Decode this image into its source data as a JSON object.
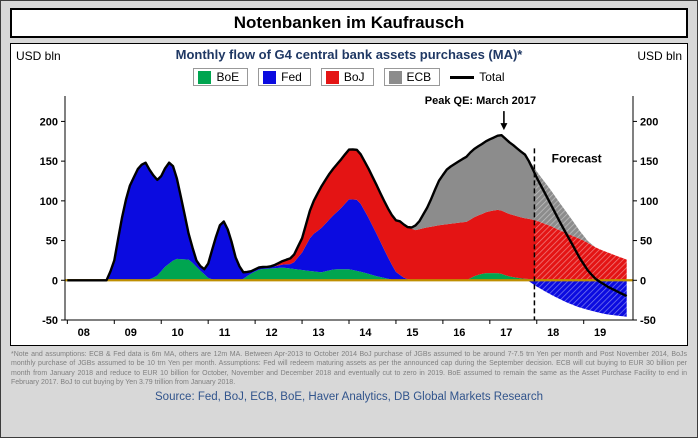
{
  "page": {
    "title": "Notenbanken im Kaufrausch"
  },
  "chart": {
    "unit_left": "USD bln",
    "unit_right": "USD bln",
    "title": "Monthly flow of G4 central bank assets purchases (MA)*",
    "footnote": "*Note and assumptions: ECB & Fed data is 6m MA, others are 12m MA. Between Apr-2013 to October 2014 BoJ purchase of JGBs assumed to be around 7-7.5 trn Yen per month and Post November 2014, BoJs monthly purchase of JGBs assumed to be 10 trn Yen per month. Assumptions: Fed will redeem maturing assets as per the announced cap during the September decision. ECB will cut buying to EUR 30 billion per month from January 2018 and reduce to EUR 10 billion for October, November and December 2018 and eventually cut to zero in 2019. BoE assumed to remain the same as the Asset Purchase Facility to end in February 2017. BoJ to cut buying by Yen 3.79 trillion from January 2018.",
    "source": "Source: Fed, BoJ, ECB, BoE, Haver Analytics, DB Global Markets Research"
  },
  "chart_data": {
    "type": "area",
    "stacked": true,
    "title": "Monthly flow of G4 central bank assets purchases (MA)*",
    "ylabel": "USD bln",
    "ylim": [
      -50,
      200
    ],
    "xlim": [
      2008,
      2020
    ],
    "grid": false,
    "legend_position": "top",
    "y_ticks": [
      200,
      150,
      100,
      50,
      0,
      -50
    ],
    "x_ticks": [
      {
        "label": "08",
        "x": 2008
      },
      {
        "label": "09",
        "x": 2009
      },
      {
        "label": "10",
        "x": 2010
      },
      {
        "label": "11",
        "x": 2011
      },
      {
        "label": "12",
        "x": 2012
      },
      {
        "label": "13",
        "x": 2013
      },
      {
        "label": "14",
        "x": 2014
      },
      {
        "label": "15",
        "x": 2015
      },
      {
        "label": "16",
        "x": 2016
      },
      {
        "label": "17",
        "x": 2017
      },
      {
        "label": "18",
        "x": 2018
      },
      {
        "label": "19",
        "x": 2019
      }
    ],
    "zero_axis_color": "#BF8F00",
    "series": [
      {
        "name": "BoE",
        "color": "#00a550",
        "points": [
          [
            2008,
            0
          ],
          [
            2009.7,
            0
          ],
          [
            2009.9,
            5
          ],
          [
            2010.1,
            18
          ],
          [
            2010.3,
            27
          ],
          [
            2010.6,
            26
          ],
          [
            2010.8,
            14
          ],
          [
            2011,
            3
          ],
          [
            2011.15,
            0
          ],
          [
            2011.7,
            0
          ],
          [
            2011.9,
            8
          ],
          [
            2012.1,
            14
          ],
          [
            2012.6,
            16
          ],
          [
            2013,
            13
          ],
          [
            2013.4,
            10
          ],
          [
            2013.7,
            14
          ],
          [
            2014,
            14
          ],
          [
            2014.3,
            10
          ],
          [
            2014.6,
            5
          ],
          [
            2014.9,
            1
          ],
          [
            2015.1,
            0
          ],
          [
            2016.5,
            0
          ],
          [
            2016.7,
            6
          ],
          [
            2016.9,
            9
          ],
          [
            2017.2,
            9
          ],
          [
            2017.4,
            5
          ],
          [
            2017.7,
            2
          ],
          [
            2018,
            1
          ],
          [
            2018.4,
            0
          ],
          [
            2019.92,
            0
          ]
        ]
      },
      {
        "name": "Fed",
        "color": "#0b0be0",
        "points": [
          [
            2008,
            0
          ],
          [
            2008.85,
            0
          ],
          [
            2009,
            25
          ],
          [
            2009.15,
            75
          ],
          [
            2009.3,
            115
          ],
          [
            2009.5,
            140
          ],
          [
            2009.65,
            150
          ],
          [
            2009.8,
            132
          ],
          [
            2009.95,
            117
          ],
          [
            2010.1,
            125
          ],
          [
            2010.2,
            128
          ],
          [
            2010.3,
            110
          ],
          [
            2010.45,
            70
          ],
          [
            2010.6,
            28
          ],
          [
            2010.75,
            8
          ],
          [
            2010.9,
            4
          ],
          [
            2011,
            18
          ],
          [
            2011.15,
            52
          ],
          [
            2011.3,
            78
          ],
          [
            2011.45,
            60
          ],
          [
            2011.6,
            25
          ],
          [
            2011.75,
            8
          ],
          [
            2011.9,
            3
          ],
          [
            2012.4,
            2
          ],
          [
            2012.8,
            6
          ],
          [
            2013,
            22
          ],
          [
            2013.2,
            45
          ],
          [
            2013.5,
            60
          ],
          [
            2013.8,
            75
          ],
          [
            2014,
            88
          ],
          [
            2014.2,
            90
          ],
          [
            2014.4,
            72
          ],
          [
            2014.6,
            52
          ],
          [
            2014.8,
            30
          ],
          [
            2015,
            10
          ],
          [
            2015.2,
            2
          ],
          [
            2015.4,
            0
          ],
          [
            2017.8,
            0
          ],
          [
            2018,
            -8
          ],
          [
            2018.3,
            -18
          ],
          [
            2018.6,
            -27
          ],
          [
            2018.9,
            -34
          ],
          [
            2019.2,
            -39
          ],
          [
            2019.5,
            -43
          ],
          [
            2019.92,
            -46
          ]
        ]
      },
      {
        "name": "BoJ",
        "color": "#e41414",
        "points": [
          [
            2008,
            0
          ],
          [
            2012.3,
            0
          ],
          [
            2012.5,
            3
          ],
          [
            2012.8,
            8
          ],
          [
            2013,
            18
          ],
          [
            2013.2,
            38
          ],
          [
            2013.4,
            52
          ],
          [
            2013.6,
            58
          ],
          [
            2013.9,
            62
          ],
          [
            2014.1,
            63
          ],
          [
            2014.4,
            62
          ],
          [
            2014.7,
            61
          ],
          [
            2014.9,
            62
          ],
          [
            2015.1,
            68
          ],
          [
            2015.4,
            63
          ],
          [
            2015.7,
            67
          ],
          [
            2016,
            70
          ],
          [
            2016.4,
            73
          ],
          [
            2016.8,
            75
          ],
          [
            2017,
            78
          ],
          [
            2017.2,
            80
          ],
          [
            2017.5,
            78
          ],
          [
            2017.8,
            76
          ],
          [
            2018,
            74
          ],
          [
            2018.3,
            68
          ],
          [
            2018.6,
            60
          ],
          [
            2019,
            50
          ],
          [
            2019.3,
            40
          ],
          [
            2019.6,
            33
          ],
          [
            2019.92,
            26
          ]
        ]
      },
      {
        "name": "ECB",
        "color": "#8c8c8c",
        "points": [
          [
            2008,
            0
          ],
          [
            2015.3,
            0
          ],
          [
            2015.5,
            10
          ],
          [
            2015.7,
            28
          ],
          [
            2015.9,
            55
          ],
          [
            2016.1,
            70
          ],
          [
            2016.3,
            76
          ],
          [
            2016.6,
            85
          ],
          [
            2016.9,
            89
          ],
          [
            2017.1,
            92
          ],
          [
            2017.25,
            95
          ],
          [
            2017.5,
            88
          ],
          [
            2017.75,
            80
          ],
          [
            2018,
            62
          ],
          [
            2018.25,
            48
          ],
          [
            2018.5,
            34
          ],
          [
            2018.75,
            20
          ],
          [
            2018.95,
            8
          ],
          [
            2019.1,
            2
          ],
          [
            2019.25,
            0
          ],
          [
            2019.92,
            0
          ]
        ]
      },
      {
        "name": "Total",
        "type": "line",
        "color": "#000000",
        "derived": "sum_of_stacked_series"
      }
    ],
    "annotations": {
      "peak": {
        "text": "Peak QE: March 2017",
        "x": 2016.8,
        "y": 222,
        "arrow_x": 2017.3,
        "arrow_y_from": 213,
        "arrow_y_to": 189
      },
      "forecast_label": {
        "text": "Forecast",
        "x": 2018.85,
        "y": 148
      },
      "forecast_line": {
        "x": 2017.95,
        "y_top": 166,
        "y_bottom": -50
      }
    }
  }
}
